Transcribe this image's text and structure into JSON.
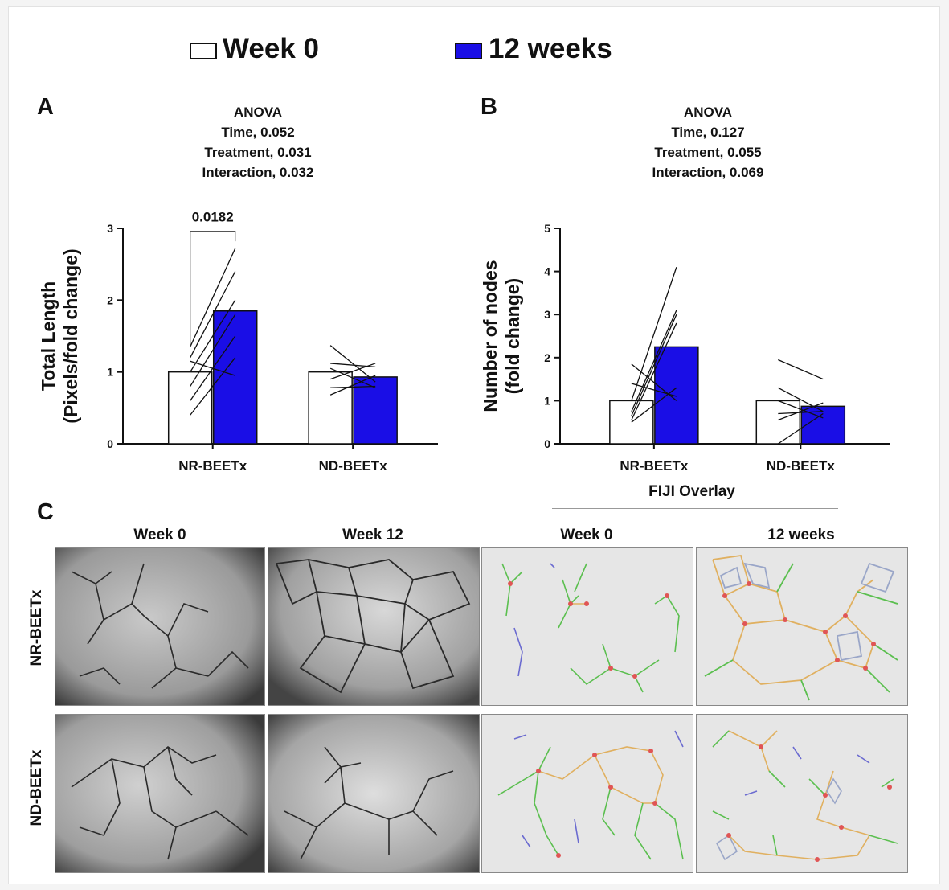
{
  "legend": {
    "items": [
      {
        "label": "Week 0",
        "color": "#ffffff"
      },
      {
        "label": "12 weeks",
        "color": "#1a0ee6"
      }
    ]
  },
  "panelC": {
    "letter": "C",
    "overlay_title": "FIJI Overlay",
    "col_labels": [
      "Week 0",
      "Week 12",
      "Week 0",
      "12 weeks"
    ],
    "row_labels": [
      "NR-BEETx",
      "ND-BEETx"
    ]
  },
  "chart_data": [
    {
      "panel": "A",
      "type": "bar",
      "title": "ANOVA",
      "stats": [
        "Time, 0.052",
        "Treatment, 0.031",
        "Interaction, 0.032"
      ],
      "ylabel": "Total Length",
      "ylabel2": "(Pixels/fold change)",
      "ylim": [
        0,
        3
      ],
      "yticks": [
        0,
        1,
        2,
        3
      ],
      "categories": [
        "NR-BEETx",
        "ND-BEETx"
      ],
      "series": [
        {
          "name": "Week 0",
          "values": [
            1.0,
            1.0
          ],
          "color": "#ffffff"
        },
        {
          "name": "12 weeks",
          "values": [
            1.85,
            0.93
          ],
          "color": "#1a0ee6"
        }
      ],
      "paired_lines": [
        [
          [
            0.4,
            1.2
          ],
          [
            0.6,
            1.5
          ],
          [
            0.8,
            1.8
          ],
          [
            1.0,
            2.0
          ],
          [
            1.15,
            0.95
          ],
          [
            1.2,
            2.4
          ],
          [
            1.35,
            2.72
          ]
        ],
        [
          [
            0.68,
            0.95
          ],
          [
            0.78,
            0.8
          ],
          [
            0.9,
            1.12
          ],
          [
            1.05,
            0.78
          ],
          [
            1.12,
            1.07
          ],
          [
            1.37,
            0.86
          ]
        ]
      ],
      "annotation": {
        "text": "0.0182",
        "between": [
          "NR-BEETx Week 0",
          "NR-BEETx 12 weeks"
        ]
      }
    },
    {
      "panel": "B",
      "type": "bar",
      "title": "ANOVA",
      "stats": [
        "Time, 0.127",
        "Treatment, 0.055",
        "Interaction, 0.069"
      ],
      "ylabel": "Number of nodes",
      "ylabel2": "(fold change)",
      "ylim": [
        0,
        5
      ],
      "yticks": [
        0,
        1,
        2,
        3,
        4,
        5
      ],
      "categories": [
        "NR-BEETx",
        "ND-BEETx"
      ],
      "series": [
        {
          "name": "Week 0",
          "values": [
            1.0,
            1.0
          ],
          "color": "#ffffff"
        },
        {
          "name": "12 weeks",
          "values": [
            2.25,
            0.87
          ],
          "color": "#1a0ee6"
        }
      ],
      "paired_lines": [
        [
          [
            0.5,
            1.3
          ],
          [
            0.55,
            2.8
          ],
          [
            0.65,
            3.0
          ],
          [
            0.75,
            3.1
          ],
          [
            1.0,
            4.1
          ],
          [
            1.4,
            1.1
          ],
          [
            1.85,
            1.0
          ]
        ],
        [
          [
            0.0,
            0.7
          ],
          [
            0.55,
            0.95
          ],
          [
            0.7,
            0.75
          ],
          [
            1.0,
            0.6
          ],
          [
            1.3,
            0.75
          ],
          [
            1.95,
            1.5
          ]
        ]
      ]
    }
  ]
}
